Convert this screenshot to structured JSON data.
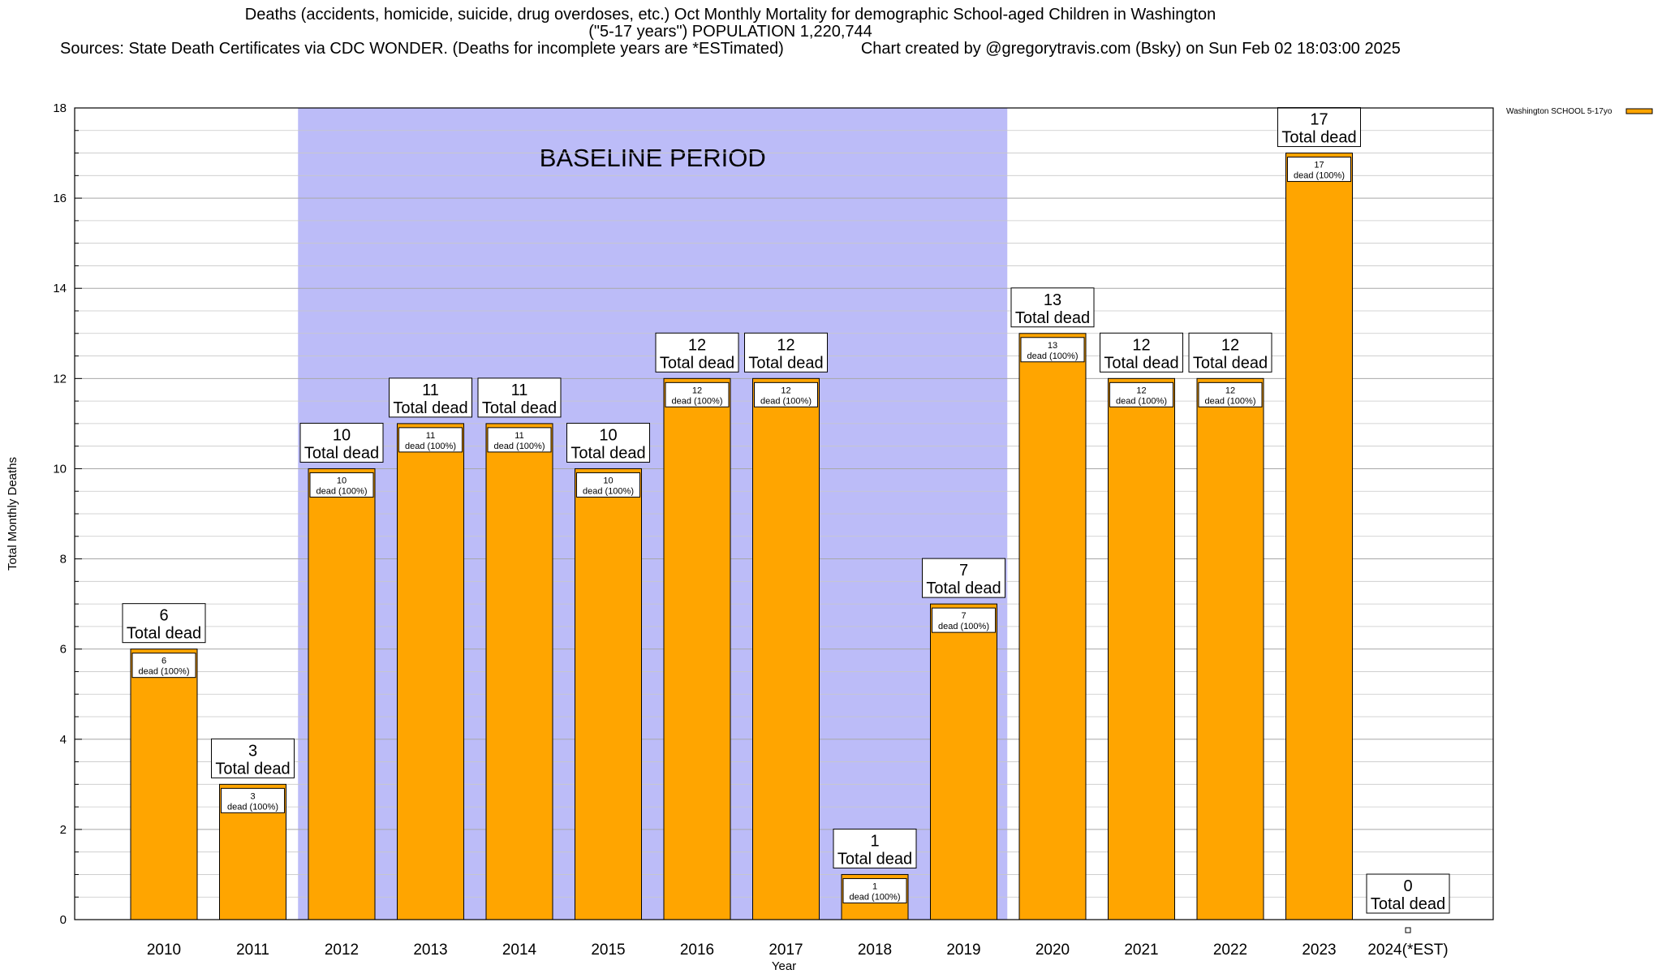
{
  "header": {
    "title_line1": "Deaths (accidents, homicide, suicide, drug overdoses, etc.) Oct Monthly Mortality for demographic School-aged Children in Washington",
    "title_line2": "(\"5-17 years\") POPULATION 1,220,744",
    "sources": "Sources: State Death Certificates via CDC WONDER. (Deaths for incomplete years are *ESTimated)",
    "credit": "Chart created by @gregorytravis.com (Bsky) on Sun Feb 02 18:03:00 2025"
  },
  "chart_data": {
    "type": "bar",
    "categories": [
      "2010",
      "2011",
      "2012",
      "2013",
      "2014",
      "2015",
      "2016",
      "2017",
      "2018",
      "2019",
      "2020",
      "2021",
      "2022",
      "2023",
      "2024(*EST)"
    ],
    "series": [
      {
        "name": "Washington SCHOOL 5-17yo",
        "values": [
          6,
          3,
          10,
          11,
          11,
          10,
          12,
          12,
          1,
          7,
          13,
          12,
          12,
          17,
          0
        ]
      }
    ],
    "xlabel": "Year",
    "ylabel": "Total Monthly Deaths",
    "ylim": [
      0,
      18
    ],
    "yticks": [
      0,
      2,
      4,
      6,
      8,
      10,
      12,
      14,
      16,
      18
    ],
    "grid": true,
    "legend_position": "top-right",
    "bar_color": "#ffa500",
    "baseline_color": "#bcbcf8",
    "annotation_total_suffix": "Total dead",
    "annotation_inner_suffix": "dead (100%)",
    "baseline_label": "BASELINE PERIOD",
    "baseline_range": [
      "2012",
      "2019"
    ]
  }
}
